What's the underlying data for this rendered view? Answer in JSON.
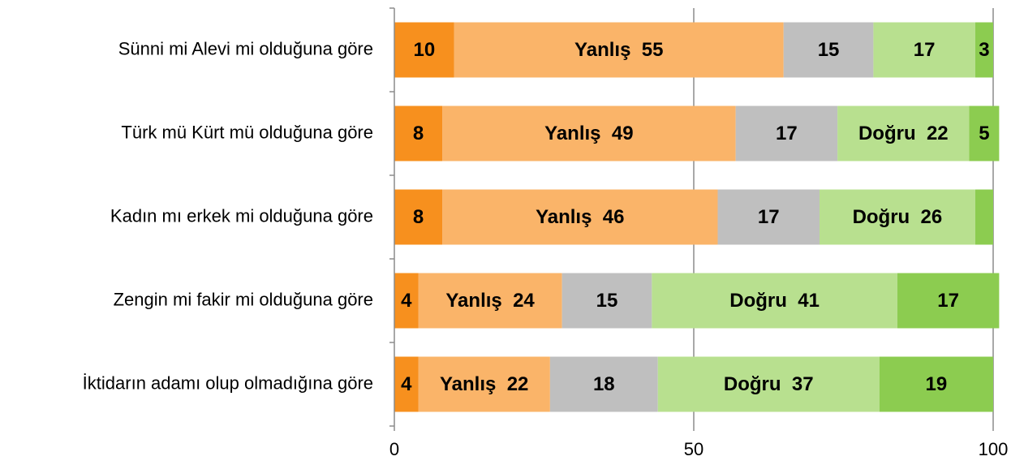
{
  "chart_data": {
    "type": "stacked-barh",
    "categories": [
      "Sünni mi Alevi mi olduğuna göre",
      "Türk mü Kürt mü olduğuna göre",
      "Kadın mı erkek mi olduğuna göre",
      "Zengin mi fakir mi olduğuna göre",
      "İktidarın adamı olup olmadığına göre"
    ],
    "series": [
      {
        "color": "#f7901e",
        "values": [
          10,
          8,
          8,
          4,
          4
        ]
      },
      {
        "color": "#fab469",
        "values": [
          55,
          49,
          46,
          24,
          22
        ],
        "value_labels": [
          "Yanlış  55",
          "Yanlış  49",
          "Yanlış  46",
          "Yanlış  24",
          "Yanlış  22"
        ]
      },
      {
        "color": "#bfbfbf",
        "values": [
          15,
          17,
          17,
          15,
          18
        ]
      },
      {
        "color": "#b8e08f",
        "values": [
          17,
          22,
          26,
          41,
          37
        ],
        "value_labels": [
          "17",
          "Doğru  22",
          "Doğru  26",
          "Doğru  41",
          "Doğru  37"
        ]
      },
      {
        "color": "#8ccc50",
        "values": [
          3,
          5,
          3,
          17,
          19
        ],
        "value_labels": [
          "3",
          "5",
          null,
          "17",
          "19"
        ]
      }
    ],
    "xlim": [
      0,
      100
    ],
    "xticks": [
      0,
      50,
      100
    ],
    "grid": true
  }
}
